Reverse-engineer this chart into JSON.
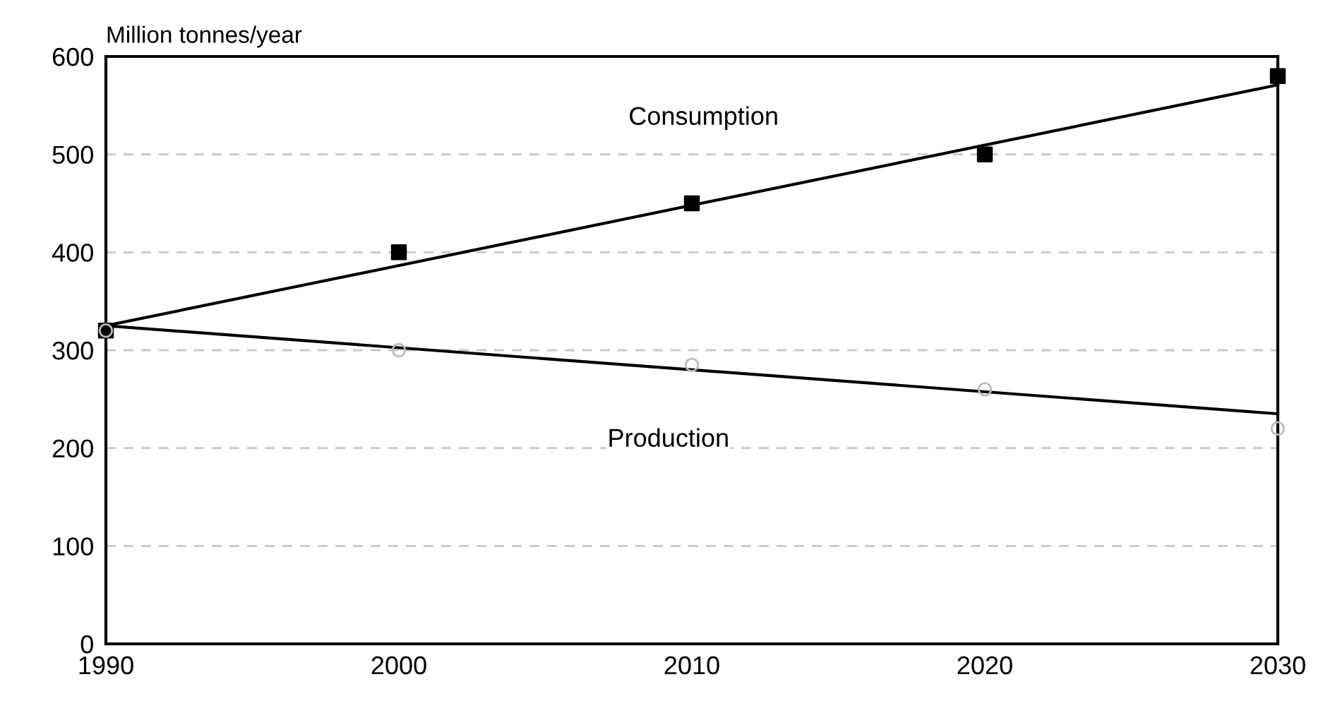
{
  "chart_data": {
    "type": "scatter",
    "ylabel": "Million tonnes/year",
    "xlim": [
      1990,
      2030
    ],
    "xticks": [
      1990,
      2000,
      2010,
      2020,
      2030
    ],
    "ylim": [
      0,
      600
    ],
    "yticks": [
      0,
      100,
      200,
      300,
      400,
      500,
      600
    ],
    "grid": "y",
    "series": [
      {
        "marker": "square",
        "color": "#000000",
        "x": [
          1990,
          2000,
          2010,
          2020,
          2030
        ],
        "values": [
          320,
          400,
          450,
          500,
          580
        ]
      },
      {
        "marker": "circle",
        "color": "#bbbbbb",
        "x": [
          1990,
          2000,
          2010,
          2020,
          2030
        ],
        "values": [
          320,
          300,
          285,
          260,
          220
        ]
      },
      {
        "type": "line",
        "marker": "none",
        "color": "#000000",
        "x": [
          1990,
          2030
        ],
        "values": [
          325,
          571
        ]
      },
      {
        "type": "line",
        "marker": "none",
        "color": "#000000",
        "x": [
          1990,
          2030
        ],
        "values": [
          325,
          235
        ]
      }
    ],
    "annotations": [
      "Consumption",
      "Production"
    ]
  }
}
